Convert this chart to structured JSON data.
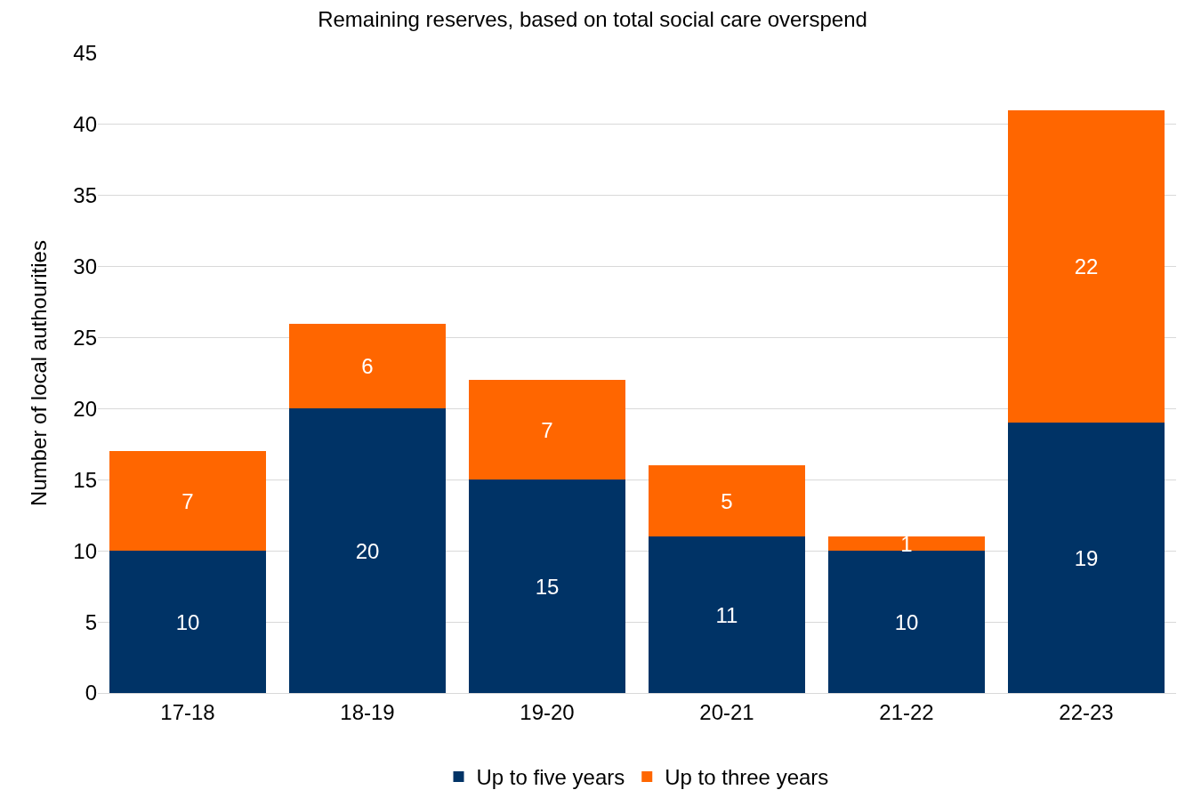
{
  "chart_data": {
    "type": "bar",
    "title": "Remaining reserves, based on total social care overspend",
    "ylabel": "Number of local authourities",
    "categories": [
      "17-18",
      "18-19",
      "19-20",
      "20-21",
      "21-22",
      "22-23"
    ],
    "series": [
      {
        "name": "Up to five years",
        "color": "#003366",
        "values": [
          10,
          20,
          15,
          11,
          10,
          19
        ]
      },
      {
        "name": "Up to three years",
        "color": "#ff6600",
        "values": [
          7,
          6,
          7,
          5,
          1,
          22
        ]
      }
    ],
    "stacked": true,
    "data_labels": true,
    "ylim": [
      0,
      45
    ],
    "yticks": [
      0,
      5,
      10,
      15,
      20,
      25,
      30,
      35,
      40,
      45
    ],
    "grid": "y",
    "legend": "bottom"
  }
}
